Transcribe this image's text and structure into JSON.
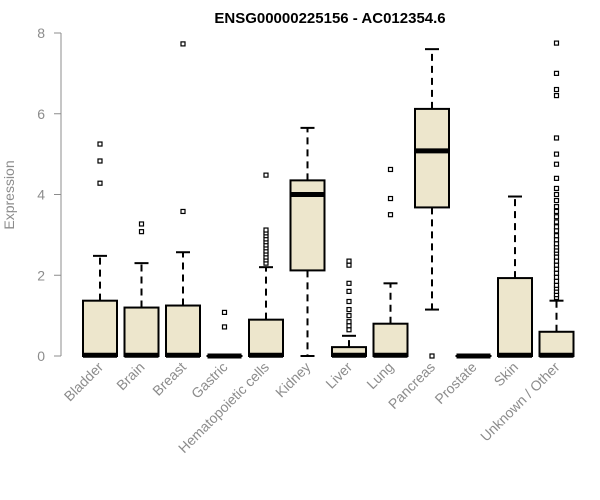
{
  "chart_data": {
    "type": "box",
    "title": "ENSG00000225156 - AC012354.6",
    "xlabel": "",
    "ylabel": "Expression",
    "ylim": [
      0,
      8
    ],
    "yticks": [
      0,
      2,
      4,
      6,
      8
    ],
    "grid": false,
    "box_fill": "#ede6cc",
    "categories": [
      "Bladder",
      "Brain",
      "Breast",
      "Gastric",
      "Hematopoietic cells",
      "Kidney",
      "Liver",
      "Lung",
      "Pancreas",
      "Prostate",
      "Skin",
      "Unknown / Other"
    ],
    "boxes": [
      {
        "whisker_low": 0,
        "q1": 0,
        "median": 0.02,
        "q3": 1.37,
        "whisker_high": 2.48,
        "outliers": [
          4.28,
          4.83,
          5.25
        ]
      },
      {
        "whisker_low": 0,
        "q1": 0,
        "median": 0.02,
        "q3": 1.2,
        "whisker_high": 2.3,
        "outliers": [
          3.08,
          3.27
        ]
      },
      {
        "whisker_low": 0,
        "q1": 0,
        "median": 0.02,
        "q3": 1.25,
        "whisker_high": 2.57,
        "outliers": [
          3.58,
          7.73
        ]
      },
      {
        "whisker_low": 0,
        "q1": 0,
        "median": 0.0,
        "q3": 0.0,
        "whisker_high": 0.0,
        "outliers": [
          0.72,
          1.08
        ]
      },
      {
        "whisker_low": 0,
        "q1": 0,
        "median": 0.02,
        "q3": 0.9,
        "whisker_high": 2.2,
        "outliers": [
          2.3,
          2.38,
          2.45,
          2.53,
          2.6,
          2.68,
          2.75,
          2.83,
          2.9,
          2.98,
          3.05,
          3.12,
          4.48
        ]
      },
      {
        "whisker_low": 0,
        "q1": 2.12,
        "median": 4.0,
        "q3": 4.35,
        "whisker_high": 5.65,
        "outliers": []
      },
      {
        "whisker_low": 0,
        "q1": 0,
        "median": 0.02,
        "q3": 0.22,
        "whisker_high": 0.5,
        "outliers": [
          0.65,
          0.75,
          0.85,
          1.0,
          1.15,
          1.35,
          1.6,
          1.8,
          2.25,
          2.35
        ]
      },
      {
        "whisker_low": 0,
        "q1": 0,
        "median": 0.02,
        "q3": 0.8,
        "whisker_high": 1.8,
        "outliers": [
          3.5,
          3.9,
          4.62
        ]
      },
      {
        "whisker_low": 1.15,
        "q1": 3.68,
        "median": 5.08,
        "q3": 6.12,
        "whisker_high": 7.6,
        "outliers": [
          0.0
        ]
      },
      {
        "whisker_low": 0,
        "q1": 0,
        "median": 0.0,
        "q3": 0.0,
        "whisker_high": 0.0,
        "outliers": []
      },
      {
        "whisker_low": 0,
        "q1": 0,
        "median": 0.02,
        "q3": 1.93,
        "whisker_high": 3.95,
        "outliers": []
      },
      {
        "whisker_low": 0,
        "q1": 0,
        "median": 0.02,
        "q3": 0.6,
        "whisker_high": 1.37,
        "outliers": [
          1.45,
          1.52,
          1.6,
          1.68,
          1.75,
          1.85,
          1.95,
          2.05,
          2.15,
          2.25,
          2.35,
          2.45,
          2.55,
          2.62,
          2.7,
          2.78,
          2.88,
          2.98,
          3.1,
          3.2,
          3.32,
          3.45,
          3.58,
          3.7,
          3.85,
          4.0,
          4.15,
          4.4,
          4.75,
          5.0,
          5.4,
          6.45,
          6.6,
          7.0,
          7.75
        ]
      }
    ]
  }
}
